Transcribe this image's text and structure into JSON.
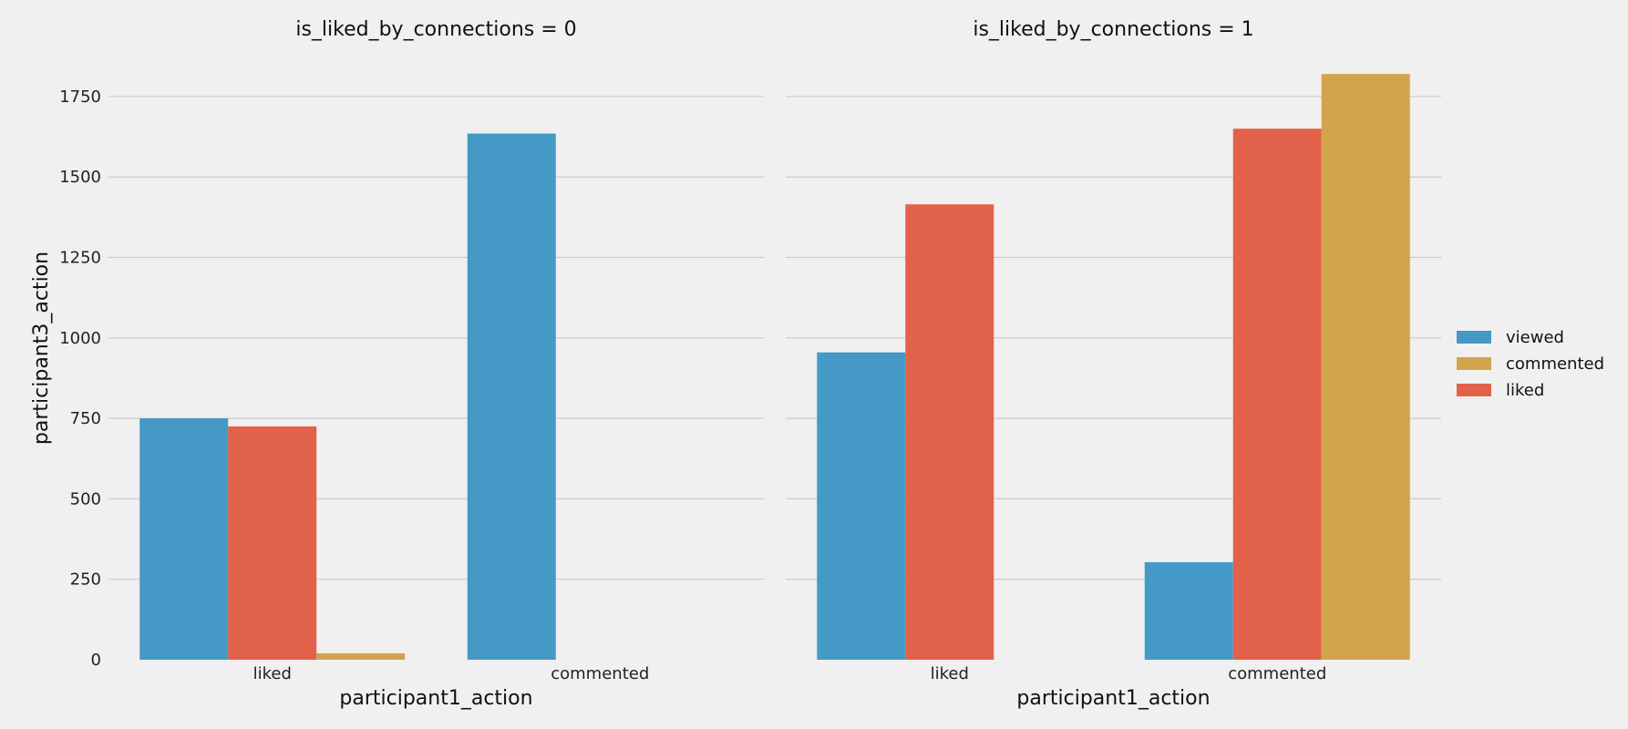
{
  "chart_data": {
    "type": "bar",
    "facet_variable": "is_liked_by_connections",
    "categories": [
      "liked",
      "commented"
    ],
    "xlabel": "participant1_action",
    "ylabel": "participant3_action",
    "ylim": [
      0,
      1880
    ],
    "yticks": [
      0,
      250,
      500,
      750,
      1000,
      1250,
      1500,
      1750
    ],
    "grid": true,
    "legend_placement": "right",
    "hue_order": [
      "viewed",
      "liked",
      "commented"
    ],
    "legend": [
      {
        "name": "viewed",
        "color": "#4599c7"
      },
      {
        "name": "commented",
        "color": "#d2a44b"
      },
      {
        "name": "liked",
        "color": "#e2614a"
      }
    ],
    "panels": [
      {
        "title": "is_liked_by_connections = 0",
        "series": [
          {
            "name": "viewed",
            "values": [
              750,
              1635
            ]
          },
          {
            "name": "liked",
            "values": [
              725,
              null
            ]
          },
          {
            "name": "commented",
            "values": [
              20,
              null
            ]
          }
        ]
      },
      {
        "title": "is_liked_by_connections = 1",
        "series": [
          {
            "name": "viewed",
            "values": [
              955,
              303
            ]
          },
          {
            "name": "liked",
            "values": [
              1415,
              1650
            ]
          },
          {
            "name": "commented",
            "values": [
              null,
              1820
            ]
          }
        ]
      }
    ]
  }
}
